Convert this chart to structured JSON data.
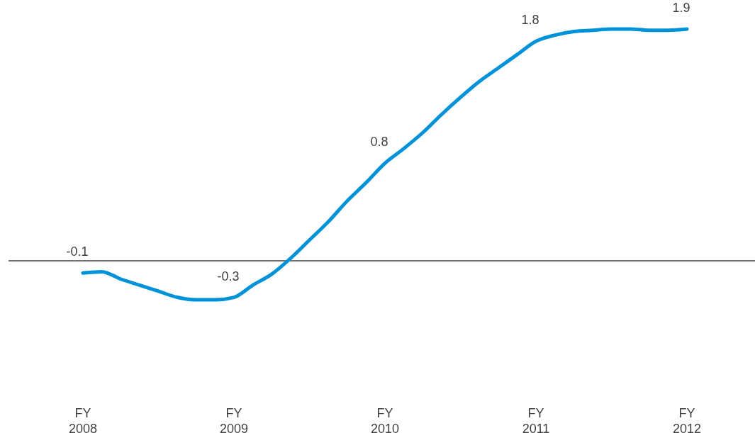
{
  "chart_data": {
    "type": "line",
    "categories": [
      "FY 2008",
      null,
      null,
      null,
      null,
      null,
      null,
      null,
      "FY 2009",
      null,
      null,
      null,
      null,
      null,
      null,
      null,
      "FY 2010",
      null,
      null,
      null,
      null,
      null,
      null,
      null,
      "FY 2011",
      null,
      null,
      null,
      null,
      null,
      null,
      null,
      "FY 2012"
    ],
    "series": [
      {
        "color": "#0092d8",
        "values": [
          -0.1,
          -0.09,
          -0.15,
          -0.2,
          -0.25,
          -0.3,
          -0.32,
          -0.32,
          -0.3,
          -0.2,
          -0.11,
          0.02,
          0.17,
          0.32,
          0.49,
          0.64,
          0.8,
          0.92,
          1.05,
          1.2,
          1.34,
          1.47,
          1.58,
          1.69,
          1.8,
          1.85,
          1.88,
          1.89,
          1.9,
          1.9,
          1.89,
          1.89,
          1.9
        ],
        "value_labels": [
          "-0.1",
          null,
          null,
          null,
          null,
          null,
          null,
          null,
          "-0.3",
          null,
          null,
          null,
          null,
          null,
          null,
          null,
          "0.8",
          null,
          null,
          null,
          null,
          null,
          null,
          null,
          "1.8",
          null,
          null,
          null,
          null,
          null,
          null,
          null,
          "1.9"
        ]
      }
    ],
    "ref_lines": [
      {
        "axis": "y",
        "value": 0,
        "color": "#404040"
      }
    ],
    "tick_labels": "x",
    "marker": "none",
    "line_style": "solid"
  }
}
